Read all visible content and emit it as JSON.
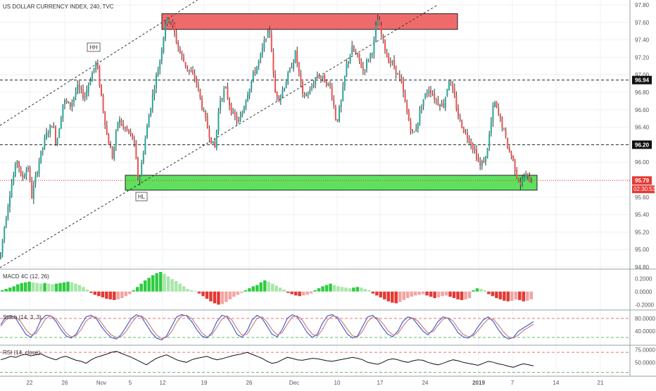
{
  "header": {
    "title": "US DOLLAR CURRENCY INDEX, 240, TVC"
  },
  "colors": {
    "up": "#26a69a",
    "down": "#ef5350",
    "wick": "#333333",
    "hist_up_strong": "#2ecc40",
    "hist_up_weak": "#a8e6a8",
    "hist_down_strong": "#e53935",
    "hist_down_weak": "#f4a3a3",
    "stoch_k": "#3a54c8",
    "stoch_d": "#c87a7a",
    "rsi": "#111111",
    "red_zone": "#ef6b6b",
    "green_zone": "#5fe05f",
    "last_price": "#e53935"
  },
  "chart_data": [
    {
      "type": "candlestick",
      "title": "US DOLLAR CURRENCY INDEX, 240, TVC",
      "ylim": [
        94.8,
        97.8
      ],
      "y_ticks": [
        "97.80",
        "97.60",
        "97.40",
        "97.20",
        "97.00",
        "96.80",
        "96.60",
        "96.40",
        "96.20",
        "96.00",
        "95.80",
        "95.60",
        "95.40",
        "95.20",
        "95.00",
        "94.80"
      ],
      "x_ticks": [
        "22",
        "26",
        "Nov",
        "5",
        "12",
        "19",
        "26",
        "Dec",
        "10",
        "17",
        "24",
        "2019",
        "7",
        "14",
        "21"
      ],
      "price_path": [
        [
          0,
          94.9
        ],
        [
          5,
          95.2
        ],
        [
          15,
          95.7
        ],
        [
          25,
          96.05
        ],
        [
          30,
          95.8
        ],
        [
          40,
          95.95
        ],
        [
          45,
          95.6
        ],
        [
          55,
          96.0
        ],
        [
          65,
          96.3
        ],
        [
          75,
          96.45
        ],
        [
          80,
          96.2
        ],
        [
          90,
          96.7
        ],
        [
          100,
          96.65
        ],
        [
          110,
          96.85
        ],
        [
          120,
          96.75
        ],
        [
          130,
          97.0
        ],
        [
          137,
          97.15
        ],
        [
          145,
          96.7
        ],
        [
          152,
          96.3
        ],
        [
          160,
          96.05
        ],
        [
          168,
          96.5
        ],
        [
          175,
          96.4
        ],
        [
          182,
          96.35
        ],
        [
          190,
          96.25
        ],
        [
          197,
          95.75
        ],
        [
          205,
          96.2
        ],
        [
          213,
          96.6
        ],
        [
          220,
          96.9
        ],
        [
          228,
          97.2
        ],
        [
          235,
          97.6
        ],
        [
          242,
          97.65
        ],
        [
          250,
          97.4
        ],
        [
          258,
          97.2
        ],
        [
          268,
          97.05
        ],
        [
          278,
          96.95
        ],
        [
          288,
          96.6
        ],
        [
          298,
          96.3
        ],
        [
          305,
          96.15
        ],
        [
          312,
          96.7
        ],
        [
          320,
          96.85
        ],
        [
          330,
          96.55
        ],
        [
          340,
          96.45
        ],
        [
          350,
          96.75
        ],
        [
          360,
          97.0
        ],
        [
          370,
          97.2
        ],
        [
          378,
          97.45
        ],
        [
          384,
          97.5
        ],
        [
          390,
          96.8
        ],
        [
          398,
          96.75
        ],
        [
          405,
          96.9
        ],
        [
          412,
          97.05
        ],
        [
          420,
          97.25
        ],
        [
          430,
          96.75
        ],
        [
          440,
          96.8
        ],
        [
          450,
          97.0
        ],
        [
          460,
          96.95
        ],
        [
          470,
          96.85
        ],
        [
          478,
          96.45
        ],
        [
          485,
          96.7
        ],
        [
          492,
          97.1
        ],
        [
          500,
          97.3
        ],
        [
          508,
          97.2
        ],
        [
          516,
          97.05
        ],
        [
          524,
          97.2
        ],
        [
          530,
          97.3
        ],
        [
          536,
          97.65
        ],
        [
          542,
          97.45
        ],
        [
          550,
          97.2
        ],
        [
          560,
          97.1
        ],
        [
          570,
          96.9
        ],
        [
          580,
          96.5
        ],
        [
          587,
          96.3
        ],
        [
          593,
          96.45
        ],
        [
          600,
          96.7
        ],
        [
          610,
          96.85
        ],
        [
          620,
          96.7
        ],
        [
          630,
          96.65
        ],
        [
          638,
          96.95
        ],
        [
          645,
          96.75
        ],
        [
          652,
          96.5
        ],
        [
          660,
          96.35
        ],
        [
          668,
          96.25
        ],
        [
          676,
          96.1
        ],
        [
          682,
          95.95
        ],
        [
          690,
          96.05
        ],
        [
          696,
          96.35
        ],
        [
          702,
          96.7
        ],
        [
          710,
          96.5
        ],
        [
          716,
          96.35
        ],
        [
          722,
          96.15
        ],
        [
          728,
          96.05
        ],
        [
          734,
          95.85
        ],
        [
          740,
          95.75
        ],
        [
          746,
          95.85
        ],
        [
          752,
          95.8
        ],
        [
          758,
          95.79
        ]
      ],
      "last_price": "95.79",
      "countdown": "02:30:53",
      "horizontal_levels": [
        "96.94",
        "96.20"
      ],
      "zones": [
        {
          "kind": "resistance",
          "y_top": 97.7,
          "y_bottom": 97.52
        },
        {
          "kind": "support",
          "y_top": 95.85,
          "y_bottom": 95.68
        }
      ],
      "annotations": [
        "HH",
        "HL"
      ]
    },
    {
      "type": "histogram",
      "title": "MACD 4C (12, 26)",
      "ylim": [
        -0.25,
        0.3
      ],
      "y_ticks": [
        "0.2000",
        "0.0000",
        "-0.2000"
      ],
      "values": [
        0.02,
        0.04,
        0.06,
        0.08,
        0.11,
        0.13,
        0.14,
        0.15,
        0.14,
        0.13,
        0.12,
        0.13,
        0.12,
        0.11,
        0.12,
        0.13,
        0.14,
        0.15,
        0.14,
        0.12,
        0.1,
        0.07,
        0.03,
        -0.02,
        -0.05,
        -0.07,
        -0.09,
        -0.11,
        -0.12,
        -0.13,
        -0.12,
        -0.1,
        -0.07,
        -0.04,
        0.02,
        0.07,
        0.12,
        0.17,
        0.21,
        0.25,
        0.28,
        0.3,
        0.27,
        0.23,
        0.19,
        0.16,
        0.12,
        0.08,
        0.04,
        0.02,
        0.01,
        -0.03,
        -0.07,
        -0.11,
        -0.15,
        -0.18,
        -0.2,
        -0.19,
        -0.16,
        -0.12,
        -0.08,
        -0.05,
        -0.02,
        0.02,
        0.05,
        0.08,
        0.1,
        0.14,
        0.17,
        0.15,
        0.12,
        0.09,
        0.06,
        0.03,
        -0.02,
        -0.04,
        -0.06,
        -0.07,
        -0.06,
        -0.05,
        -0.03,
        0.02,
        0.05,
        0.08,
        0.1,
        0.12,
        0.1,
        0.08,
        0.07,
        0.06,
        0.05,
        0.06,
        0.07,
        0.06,
        0.04,
        0.02,
        -0.03,
        -0.06,
        -0.09,
        -0.12,
        -0.15,
        -0.17,
        -0.18,
        -0.16,
        -0.13,
        -0.1,
        -0.08,
        -0.06,
        -0.05,
        -0.04,
        -0.06,
        -0.08,
        -0.1,
        -0.09,
        -0.07,
        -0.06,
        -0.08,
        -0.1,
        -0.12,
        -0.13,
        -0.12,
        -0.1,
        0.02,
        0.05,
        0.04,
        0.02,
        -0.04,
        -0.07,
        -0.1,
        -0.12,
        -0.14,
        -0.15,
        -0.14,
        -0.12,
        -0.13,
        -0.15,
        -0.14,
        -0.12
      ]
    },
    {
      "type": "line",
      "title": "Stoch (14, 3, 3)",
      "ylim": [
        0,
        100
      ],
      "y_ticks": [
        "80.0000",
        "40.0000"
      ],
      "guide_levels": [
        80,
        20
      ],
      "series": [
        {
          "values": [
            60,
            85,
            90,
            80,
            55,
            30,
            20,
            40,
            75,
            90,
            88,
            70,
            45,
            25,
            18,
            30,
            60,
            85,
            90,
            80,
            55,
            35,
            20,
            15,
            30,
            55,
            80,
            92,
            85,
            60,
            35,
            18,
            12,
            25,
            55,
            85,
            92,
            88,
            70,
            45,
            25,
            18,
            35,
            70,
            90,
            85,
            60,
            30,
            20,
            40,
            75,
            90,
            80,
            55,
            30,
            22,
            45,
            80,
            92,
            85,
            60,
            35,
            20,
            30,
            65,
            88,
            92,
            80,
            55,
            30,
            18,
            25,
            55,
            85,
            90,
            75,
            50,
            30,
            22,
            40,
            70,
            85,
            80,
            60,
            40,
            28,
            45,
            70,
            85,
            80,
            60,
            35,
            22,
            18,
            30,
            55,
            75,
            85,
            70,
            45,
            25,
            15,
            20,
            40,
            50,
            60,
            70
          ]
        },
        {
          "values": [
            55,
            75,
            85,
            85,
            70,
            45,
            28,
            32,
            55,
            80,
            88,
            78,
            58,
            35,
            22,
            25,
            45,
            72,
            85,
            85,
            68,
            45,
            28,
            20,
            23,
            40,
            65,
            85,
            88,
            75,
            50,
            28,
            17,
            20,
            38,
            68,
            88,
            90,
            80,
            58,
            35,
            22,
            28,
            52,
            78,
            88,
            75,
            48,
            27,
            30,
            55,
            80,
            85,
            68,
            45,
            28,
            35,
            62,
            85,
            88,
            75,
            50,
            30,
            25,
            45,
            75,
            88,
            85,
            68,
            45,
            25,
            22,
            40,
            70,
            85,
            82,
            65,
            42,
            28,
            32,
            55,
            75,
            82,
            72,
            52,
            35,
            38,
            58,
            78,
            82,
            72,
            48,
            30,
            22,
            25,
            42,
            62,
            78,
            78,
            60,
            38,
            22,
            18,
            28,
            42,
            52,
            62
          ]
        }
      ]
    },
    {
      "type": "line",
      "title": "RSI (14, close)",
      "ylim": [
        25,
        80
      ],
      "y_ticks": [
        "75.0000",
        "50.0000"
      ],
      "guide_levels": [
        70,
        30
      ],
      "series": [
        {
          "values": [
            55,
            58,
            62,
            60,
            64,
            66,
            63,
            65,
            67,
            62,
            58,
            55,
            60,
            62,
            58,
            54,
            52,
            48,
            55,
            60,
            63,
            66,
            70,
            72,
            68,
            64,
            60,
            55,
            50,
            45,
            52,
            58,
            62,
            65,
            60,
            55,
            52,
            50,
            55,
            58,
            60,
            62,
            58,
            55,
            57,
            60,
            63,
            65,
            67,
            70,
            66,
            62,
            58,
            52,
            48,
            50,
            55,
            60,
            58,
            55,
            54,
            56,
            58,
            57,
            55,
            53,
            52,
            54,
            56,
            58,
            60,
            58,
            55,
            50,
            48,
            46,
            50,
            55,
            57,
            55,
            52,
            50,
            53,
            55,
            54,
            50,
            47,
            45,
            48,
            52,
            55,
            53,
            50,
            48,
            46,
            44,
            48,
            52,
            50,
            47,
            45,
            42,
            40,
            44,
            47,
            45,
            43
          ]
        }
      ]
    }
  ]
}
